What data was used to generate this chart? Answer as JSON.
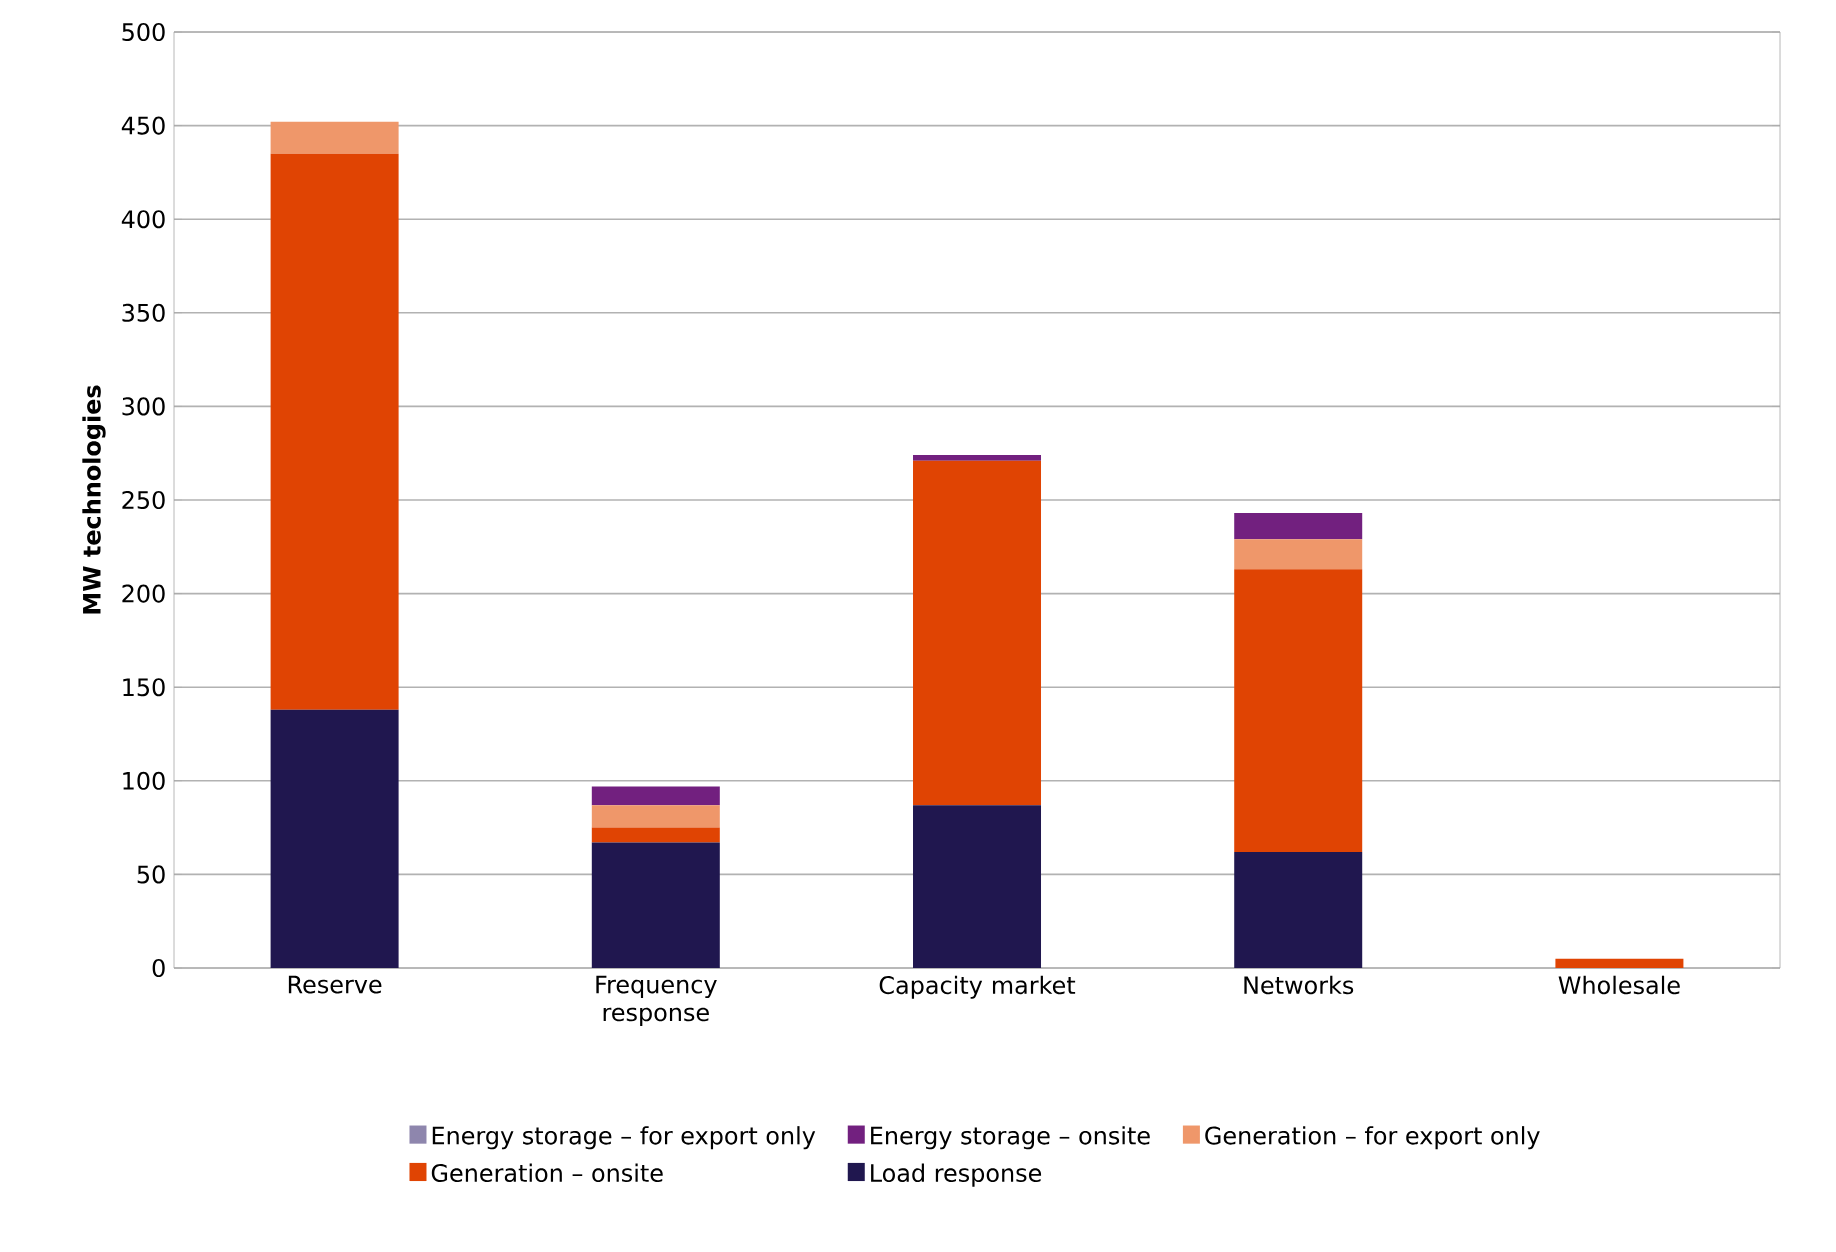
{
  "chart_data": {
    "type": "bar",
    "stacked": true,
    "ylabel": "MW technologies",
    "categories": [
      "Reserve",
      "Frequency response",
      "Capacity market",
      "Networks",
      "Wholesale"
    ],
    "series": [
      {
        "name": "Load response",
        "color": "#20174f",
        "values": [
          138,
          67,
          87,
          62,
          0
        ]
      },
      {
        "name": "Generation – onsite",
        "color": "#e04403",
        "values": [
          297,
          8,
          184,
          151,
          5
        ]
      },
      {
        "name": "Generation – for export only",
        "color": "#ef976a",
        "values": [
          17,
          12,
          0,
          16,
          0
        ]
      },
      {
        "name": "Energy storage – onsite",
        "color": "#72207f",
        "values": [
          0,
          10,
          3,
          14,
          0
        ]
      },
      {
        "name": "Energy storage – for export only",
        "color": "#8e86ad",
        "values": [
          0,
          0,
          0,
          0,
          0
        ]
      }
    ],
    "ylim": [
      0,
      500
    ],
    "yticks": [
      0,
      50,
      100,
      150,
      200,
      250,
      300,
      350,
      400,
      450,
      500
    ],
    "grid": "y",
    "legend": "bottom"
  }
}
